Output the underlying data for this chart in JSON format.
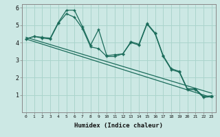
{
  "background_color": "#cce8e4",
  "grid_color": "#aad4cc",
  "line_color": "#1a6b5a",
  "xlabel": "Humidex (Indice chaleur)",
  "ylim": [
    0,
    6.2
  ],
  "xlim": [
    -0.5,
    23.5
  ],
  "yticks": [
    1,
    2,
    3,
    4,
    5,
    6
  ],
  "xticks": [
    0,
    1,
    2,
    3,
    4,
    5,
    6,
    7,
    8,
    9,
    10,
    11,
    12,
    13,
    14,
    15,
    16,
    17,
    18,
    19,
    20,
    21,
    22,
    23
  ],
  "series1": [
    4.2,
    4.35,
    4.3,
    4.25,
    5.15,
    5.85,
    5.85,
    4.9,
    3.85,
    4.75,
    3.25,
    3.3,
    3.35,
    4.05,
    3.9,
    5.1,
    4.55,
    3.25,
    2.5,
    2.35,
    1.35,
    1.35,
    0.9,
    0.95
  ],
  "series2": [
    4.2,
    4.35,
    4.25,
    4.2,
    5.1,
    5.65,
    5.45,
    4.8,
    3.75,
    3.65,
    3.2,
    3.2,
    3.35,
    4.0,
    3.85,
    5.05,
    4.5,
    3.2,
    2.45,
    2.3,
    1.3,
    1.3,
    0.85,
    0.9
  ],
  "trend1_x": [
    0,
    23
  ],
  "trend1_y": [
    4.3,
    1.1
  ],
  "trend2_x": [
    0,
    23
  ],
  "trend2_y": [
    4.2,
    0.85
  ]
}
